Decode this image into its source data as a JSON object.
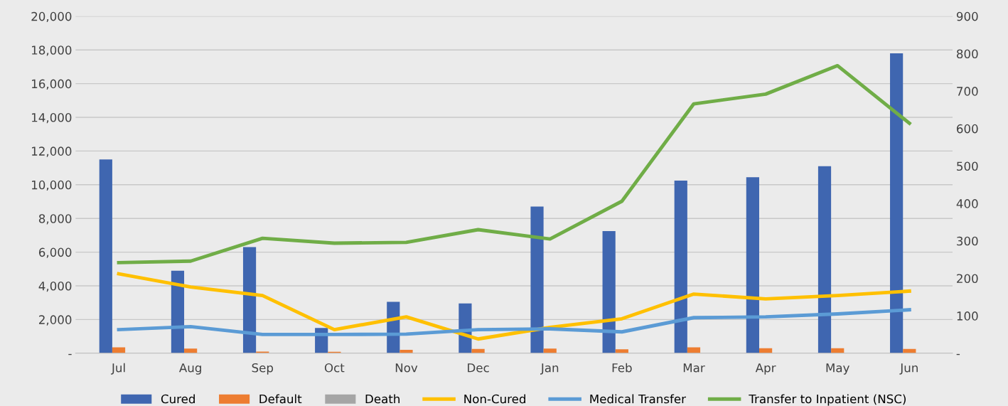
{
  "chart_data": {
    "type": "bar",
    "categories": [
      "Jul",
      "Aug",
      "Sep",
      "Oct",
      "Nov",
      "Dec",
      "Jan",
      "Feb",
      "Mar",
      "Apr",
      "May",
      "Jun"
    ],
    "series": [
      {
        "name": "Cured",
        "color": "#3f66b0",
        "values": [
          11500,
          4900,
          6300,
          1500,
          3050,
          2950,
          8700,
          7250,
          10250,
          10450,
          11100,
          17800
        ]
      },
      {
        "name": "Default",
        "color": "#ed7d31",
        "values": [
          350,
          280,
          100,
          80,
          200,
          250,
          280,
          230,
          350,
          300,
          300,
          250
        ]
      },
      {
        "name": "Death",
        "color": "#a5a5a5",
        "values": [
          0,
          0,
          0,
          0,
          0,
          0,
          0,
          0,
          0,
          0,
          0,
          0
        ]
      },
      {
        "name": "Non-Cured",
        "type": "line",
        "axis": "y2",
        "color": "#ffc000",
        "values": [
          212,
          177,
          154,
          63,
          97,
          38,
          69,
          92,
          158,
          145,
          154,
          166
        ]
      },
      {
        "name": "Medical Transfer",
        "type": "line",
        "axis": "y2",
        "color": "#5b9bd5",
        "values": [
          63,
          71,
          50,
          50,
          51,
          63,
          65,
          57,
          95,
          97,
          105,
          116
        ]
      },
      {
        "name": "Transfer to Inpatient (NSC)",
        "type": "line",
        "axis": "y2",
        "color": "#70ad47",
        "values": [
          242,
          246,
          307,
          294,
          296,
          330,
          305,
          406,
          666,
          692,
          768,
          614
        ]
      }
    ],
    "ylim": [
      0,
      20000
    ],
    "yticks": [
      {
        "value": 0,
        "label": "-"
      },
      {
        "value": 2000,
        "label": "2,000"
      },
      {
        "value": 4000,
        "label": "4,000"
      },
      {
        "value": 6000,
        "label": "6,000"
      },
      {
        "value": 8000,
        "label": "8,000"
      },
      {
        "value": 10000,
        "label": "10,000"
      },
      {
        "value": 12000,
        "label": "12,000"
      },
      {
        "value": 14000,
        "label": "14,000"
      },
      {
        "value": 16000,
        "label": "16,000"
      },
      {
        "value": 18000,
        "label": "18,000"
      },
      {
        "value": 20000,
        "label": "20,000"
      }
    ],
    "y2lim": [
      0,
      900
    ],
    "y2ticks": [
      {
        "value": 0,
        "label": "-"
      },
      100,
      200,
      300,
      400,
      500,
      600,
      700,
      800,
      900
    ],
    "grid": "y",
    "legend": "bottom",
    "line_style": "solid",
    "marker": "none"
  }
}
